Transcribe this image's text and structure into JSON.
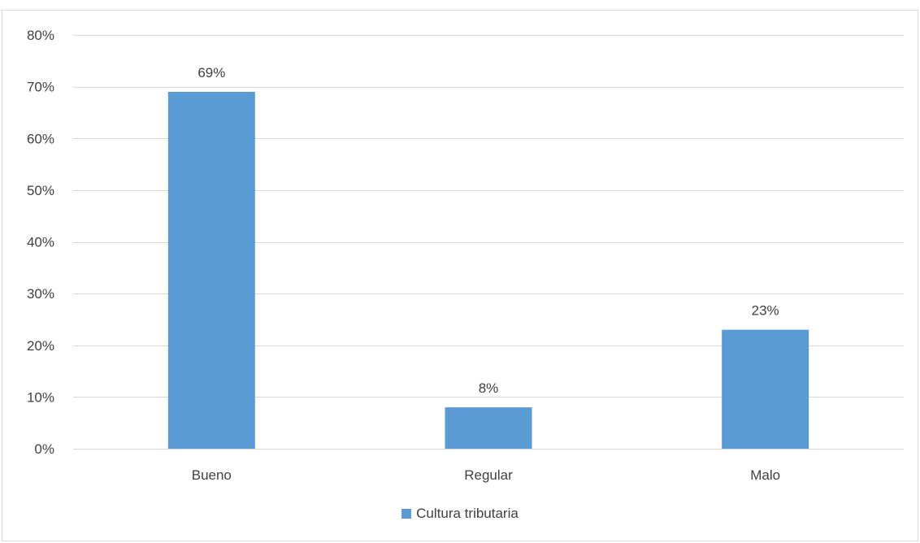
{
  "chart_data": {
    "type": "bar",
    "categories": [
      "Bueno",
      "Regular",
      "Malo"
    ],
    "series": [
      {
        "name": "Cultura tributaria",
        "values": [
          69,
          8,
          23
        ],
        "labels": [
          "69%",
          "8%",
          "23%"
        ],
        "color": "#5b9bd5"
      }
    ],
    "ylim": [
      0,
      80
    ],
    "yticks": [
      0,
      10,
      20,
      30,
      40,
      50,
      60,
      70,
      80
    ],
    "ytick_labels": [
      "0%",
      "10%",
      "20%",
      "30%",
      "40%",
      "50%",
      "60%",
      "70%",
      "80%"
    ],
    "grid": true,
    "legend": "bottom",
    "colors": {
      "bar": "#5b9bd5",
      "grid": "#d9d9d9",
      "text": "#404040"
    }
  }
}
